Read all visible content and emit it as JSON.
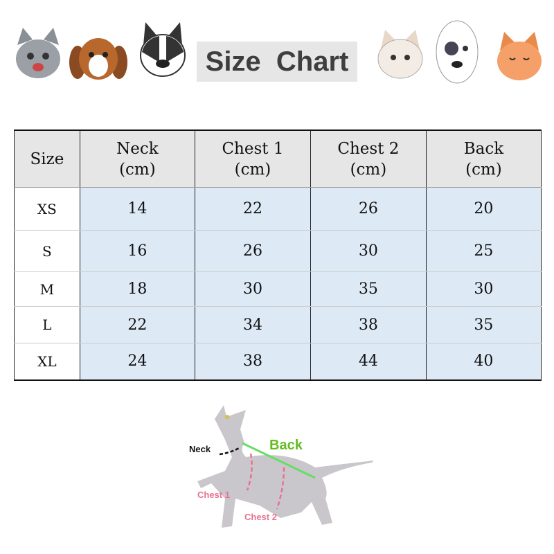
{
  "title": "Size  Chart",
  "table": {
    "headers": [
      "Size",
      "Neck\n(cm)",
      "Chest 1\n(cm)",
      "Chest 2\n(cm)",
      "Back\n(cm)"
    ],
    "rows": [
      [
        "XS",
        "14",
        "22",
        "26",
        "20"
      ],
      [
        "S",
        "16",
        "26",
        "30",
        "25"
      ],
      [
        "M",
        "18",
        "30",
        "35",
        "30"
      ],
      [
        "L",
        "22",
        "34",
        "38",
        "35"
      ],
      [
        "XL",
        "24",
        "38",
        "44",
        "40"
      ]
    ]
  },
  "diagram": {
    "neck": "Neck",
    "back": "Back",
    "chest1": "Chest 1",
    "chest2": "Chest 2"
  },
  "colors": {
    "back": "#66bb22",
    "chest": "#e8728f",
    "header_bg": "#e6e6e6",
    "cell_bg": "#dde9f5"
  }
}
